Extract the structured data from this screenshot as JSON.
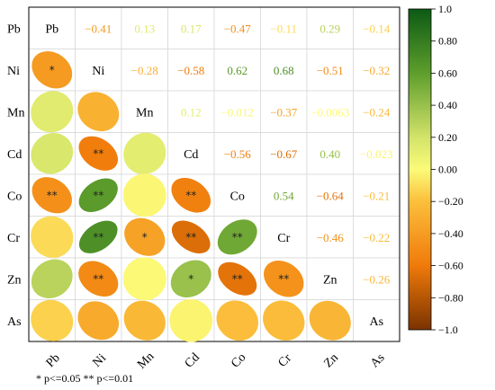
{
  "chart_data": {
    "type": "heatmap",
    "variables": [
      "Pb",
      "Ni",
      "Mn",
      "Cd",
      "Co",
      "Cr",
      "Zn",
      "As"
    ],
    "upper_values": [
      [
        null,
        "−0.41",
        "0.13",
        "0.17",
        "−0.47",
        "−0.11",
        "0.29",
        "−0.14"
      ],
      [
        null,
        null,
        "−0.28",
        "−0.58",
        "0.62",
        "0.68",
        "−0.51",
        "−0.32"
      ],
      [
        null,
        null,
        null,
        "0.12",
        "−0.012",
        "−0.37",
        "−0.0063",
        "−0.24"
      ],
      [
        null,
        null,
        null,
        null,
        "−0.56",
        "−0.67",
        "0.40",
        "−0.023"
      ],
      [
        null,
        null,
        null,
        null,
        null,
        "0.54",
        "−0.64",
        "−0.21"
      ],
      [
        null,
        null,
        null,
        null,
        null,
        null,
        "−0.46",
        "−0.22"
      ],
      [
        null,
        null,
        null,
        null,
        null,
        null,
        null,
        "−0.26"
      ],
      [
        null,
        null,
        null,
        null,
        null,
        null,
        null,
        null
      ]
    ],
    "upper_numeric": [
      [
        null,
        -0.41,
        0.13,
        0.17,
        -0.47,
        -0.11,
        0.29,
        -0.14
      ],
      [
        null,
        null,
        -0.28,
        -0.58,
        0.62,
        0.68,
        -0.51,
        -0.32
      ],
      [
        null,
        null,
        null,
        0.12,
        -0.012,
        -0.37,
        -0.0063,
        -0.24
      ],
      [
        null,
        null,
        null,
        null,
        -0.56,
        -0.67,
        0.4,
        -0.023
      ],
      [
        null,
        null,
        null,
        null,
        null,
        0.54,
        -0.64,
        -0.21
      ],
      [
        null,
        null,
        null,
        null,
        null,
        null,
        -0.46,
        -0.22
      ],
      [
        null,
        null,
        null,
        null,
        null,
        null,
        null,
        -0.26
      ],
      [
        null,
        null,
        null,
        null,
        null,
        null,
        null,
        null
      ]
    ],
    "significance": [
      [
        null,
        null,
        null,
        null,
        null,
        null,
        null,
        null
      ],
      [
        "*",
        null,
        null,
        null,
        null,
        null,
        null,
        null
      ],
      [
        null,
        null,
        null,
        null,
        null,
        null,
        null,
        null
      ],
      [
        null,
        "**",
        null,
        null,
        null,
        null,
        null,
        null
      ],
      [
        "**",
        "**",
        null,
        "**",
        null,
        null,
        null,
        null
      ],
      [
        null,
        "**",
        "*",
        "**",
        "**",
        null,
        null,
        null
      ],
      [
        null,
        "**",
        null,
        "*",
        "**",
        "**",
        null,
        null
      ],
      [
        null,
        null,
        null,
        null,
        null,
        null,
        null,
        null
      ]
    ],
    "colorbar": {
      "range": [
        -1.0,
        1.0
      ],
      "ticks": [
        "1.0",
        "0.80",
        "0.60",
        "0.40",
        "0.20",
        "0.00",
        "−0.20",
        "−0.40",
        "−0.60",
        "−0.80",
        "−1.0"
      ],
      "tick_values": [
        1.0,
        0.8,
        0.6,
        0.4,
        0.2,
        0.0,
        -0.2,
        -0.4,
        -0.6,
        -0.8,
        -1.0
      ],
      "gradient": [
        {
          "v": -1.0,
          "c": "#7a3300"
        },
        {
          "v": -0.6,
          "c": "#f07a0a"
        },
        {
          "v": -0.2,
          "c": "#fbbf3c"
        },
        {
          "v": 0.0,
          "c": "#fbfb78"
        },
        {
          "v": 0.2,
          "c": "#d3e36a"
        },
        {
          "v": 0.6,
          "c": "#5e9e2c"
        },
        {
          "v": 1.0,
          "c": "#0c5a14"
        }
      ]
    },
    "footnote": "* p<=0.05  ** p<=0.01"
  }
}
